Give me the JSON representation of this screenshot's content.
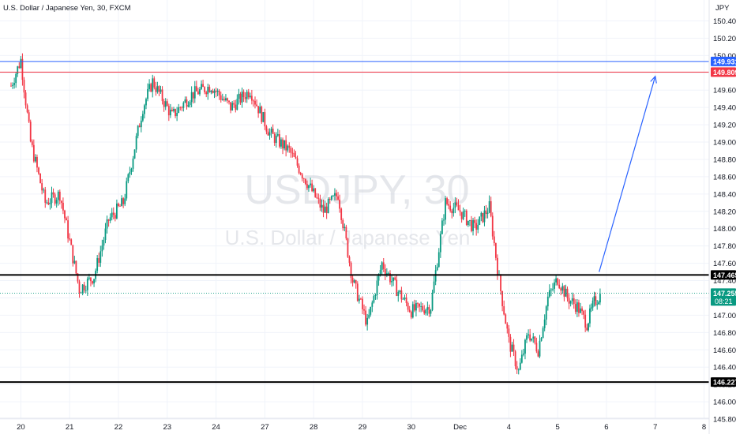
{
  "header": {
    "legend": "U.S. Dollar / Japanese Yen, 30, FXCM",
    "currency": "JPY"
  },
  "watermark": {
    "symbol": "USDJPY, 30",
    "name": "U.S. Dollar / Japanese Yen"
  },
  "chart_data": {
    "type": "candlestick",
    "ylim": [
      145.6,
      150.6
    ],
    "xlim": [
      0,
      140
    ],
    "y_ticks": [
      {
        "value": 145.8,
        "label": "145.800"
      },
      {
        "value": 146.0,
        "label": "146.000"
      },
      {
        "value": 146.2,
        "label": "146.200"
      },
      {
        "value": 146.4,
        "label": "146.400"
      },
      {
        "value": 146.6,
        "label": "146.600"
      },
      {
        "value": 146.8,
        "label": "146.800"
      },
      {
        "value": 147.0,
        "label": "147.000"
      },
      {
        "value": 147.2,
        "label": "147.200"
      },
      {
        "value": 147.4,
        "label": "147.400"
      },
      {
        "value": 147.6,
        "label": "147.600"
      },
      {
        "value": 147.8,
        "label": "147.800"
      },
      {
        "value": 148.0,
        "label": "148.000"
      },
      {
        "value": 148.2,
        "label": "148.200"
      },
      {
        "value": 148.4,
        "label": "148.400"
      },
      {
        "value": 148.6,
        "label": "148.600"
      },
      {
        "value": 148.8,
        "label": "148.800"
      },
      {
        "value": 149.0,
        "label": "149.000"
      },
      {
        "value": 149.2,
        "label": "149.200"
      },
      {
        "value": 149.4,
        "label": "149.400"
      },
      {
        "value": 149.6,
        "label": "149.600"
      },
      {
        "value": 149.8,
        "label": "149.800"
      },
      {
        "value": 150.0,
        "label": "150.000"
      },
      {
        "value": 150.2,
        "label": "150.200"
      },
      {
        "value": 150.4,
        "label": "150.400"
      }
    ],
    "x_ticks": [
      {
        "x": 2,
        "label": "20"
      },
      {
        "x": 12,
        "label": "21"
      },
      {
        "x": 22,
        "label": "22"
      },
      {
        "x": 32,
        "label": "23"
      },
      {
        "x": 42,
        "label": "24"
      },
      {
        "x": 52,
        "label": "27"
      },
      {
        "x": 62,
        "label": "28"
      },
      {
        "x": 72,
        "label": "29"
      },
      {
        "x": 82,
        "label": "30"
      },
      {
        "x": 92,
        "label": "Dec"
      },
      {
        "x": 102,
        "label": "4"
      },
      {
        "x": 112,
        "label": "5"
      },
      {
        "x": 122,
        "label": "6"
      },
      {
        "x": 132,
        "label": "7"
      },
      {
        "x": 142,
        "label": "8"
      }
    ],
    "horizontal_lines": [
      {
        "name": "resistance-blue",
        "value": 149.931,
        "label": "149.931",
        "color": "#2962ff",
        "width": 1
      },
      {
        "name": "resistance-red",
        "value": 149.809,
        "label": "149.809",
        "color": "#f23645",
        "width": 1
      },
      {
        "name": "level-147465",
        "value": 147.465,
        "label": "147.465",
        "color": "#000000",
        "width": 2
      },
      {
        "name": "support-146227",
        "value": 146.227,
        "label": "146.227",
        "color": "#000000",
        "width": 2
      }
    ],
    "current_price": {
      "value": 147.255,
      "label": "147.255",
      "countdown": "08:21",
      "color": "#089981"
    },
    "arrow": {
      "from": {
        "x": 120.5,
        "y": 147.5
      },
      "to": {
        "x": 132,
        "y": 149.76
      },
      "color": "#2962ff"
    },
    "key_points": [
      {
        "x": 0,
        "y": 149.65
      },
      {
        "x": 2,
        "y": 149.95
      },
      {
        "x": 4,
        "y": 149.0
      },
      {
        "x": 7,
        "y": 148.3
      },
      {
        "x": 10,
        "y": 148.4
      },
      {
        "x": 14,
        "y": 147.3
      },
      {
        "x": 17,
        "y": 147.45
      },
      {
        "x": 20,
        "y": 148.1
      },
      {
        "x": 23,
        "y": 148.3
      },
      {
        "x": 27,
        "y": 149.4
      },
      {
        "x": 29,
        "y": 149.7
      },
      {
        "x": 33,
        "y": 149.3
      },
      {
        "x": 37,
        "y": 149.55
      },
      {
        "x": 41,
        "y": 149.65
      },
      {
        "x": 45,
        "y": 149.4
      },
      {
        "x": 49,
        "y": 149.6
      },
      {
        "x": 53,
        "y": 149.1
      },
      {
        "x": 57,
        "y": 148.9
      },
      {
        "x": 61,
        "y": 148.5
      },
      {
        "x": 64,
        "y": 148.2
      },
      {
        "x": 67,
        "y": 148.4
      },
      {
        "x": 70,
        "y": 147.4
      },
      {
        "x": 73,
        "y": 146.9
      },
      {
        "x": 76,
        "y": 147.6
      },
      {
        "x": 79,
        "y": 147.3
      },
      {
        "x": 82,
        "y": 147.05
      },
      {
        "x": 86,
        "y": 147.1
      },
      {
        "x": 89,
        "y": 148.3
      },
      {
        "x": 92,
        "y": 148.2
      },
      {
        "x": 95,
        "y": 148.0
      },
      {
        "x": 98,
        "y": 148.25
      },
      {
        "x": 100,
        "y": 147.4
      },
      {
        "x": 102,
        "y": 146.7
      },
      {
        "x": 104,
        "y": 146.35
      },
      {
        "x": 106,
        "y": 146.8
      },
      {
        "x": 108,
        "y": 146.6
      },
      {
        "x": 110,
        "y": 147.2
      },
      {
        "x": 112,
        "y": 147.42
      },
      {
        "x": 114,
        "y": 147.2
      },
      {
        "x": 116,
        "y": 147.1
      },
      {
        "x": 118,
        "y": 146.9
      },
      {
        "x": 119.5,
        "y": 147.15
      },
      {
        "x": 121,
        "y": 147.25
      }
    ],
    "colors": {
      "up": "#089981",
      "down": "#f23645"
    }
  }
}
